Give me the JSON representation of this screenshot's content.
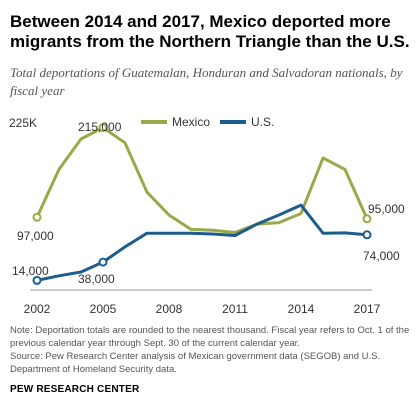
{
  "header": {
    "title": "Between 2014 and 2017, Mexico deported more migrants from the Northern Triangle than the U.S.",
    "subtitle": "Total deportations of Guatemalan, Honduran and Salvadoran nationals, by fiscal year"
  },
  "chart_data": {
    "type": "line",
    "x": [
      2002,
      2003,
      2004,
      2005,
      2006,
      2007,
      2008,
      2009,
      2010,
      2011,
      2012,
      2013,
      2014,
      2015,
      2016,
      2017
    ],
    "series": [
      {
        "name": "Mexico",
        "color": "#9aa84a",
        "values": [
          97000,
          160000,
          200000,
          215000,
          195000,
          130000,
          100000,
          81000,
          80000,
          77000,
          88000,
          90000,
          102000,
          175000,
          160000,
          95000
        ]
      },
      {
        "name": "U.S.",
        "color": "#1b5d8e",
        "values": [
          14000,
          20000,
          25000,
          38000,
          58000,
          76000,
          76000,
          76000,
          75000,
          73000,
          88000,
          100000,
          113000,
          76000,
          76500,
          74000
        ]
      }
    ],
    "ylim": [
      0,
      225000
    ],
    "x_ticks": [
      "2002",
      "2005",
      "2008",
      "2011",
      "2014",
      "2017"
    ],
    "y_tick_label": "225K",
    "annotations": [
      "97,000",
      "215,000",
      "95,000",
      "14,000",
      "38,000",
      "74,000"
    ],
    "legend": [
      "Mexico",
      "U.S."
    ],
    "legend_position": "top-center",
    "grid": false
  },
  "footnotes": {
    "note": "Note: Deportation totals are rounded to the nearest thousand. Fiscal year refers to Oct. 1 of the previous calendar year through Sept. 30 of the current calendar year.",
    "source": "Source: Pew Research Center analysis of Mexican government data (SEGOB) and U.S. Department of Homeland Security data."
  },
  "branding": {
    "footer": "PEW RESEARCH CENTER"
  }
}
